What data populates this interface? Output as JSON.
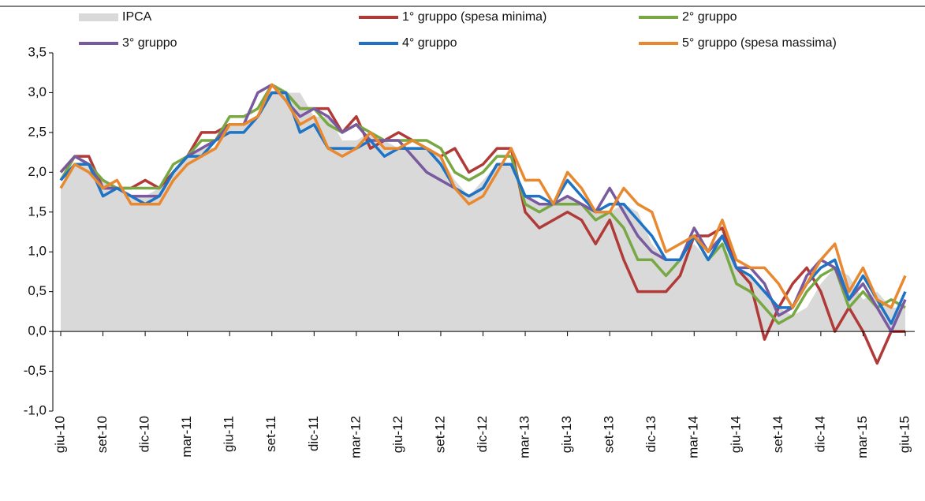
{
  "chart_data": {
    "type": "line",
    "categories": [
      "giu-10",
      null,
      null,
      "set-10",
      null,
      null,
      "dic-10",
      null,
      null,
      "mar-11",
      null,
      null,
      "giu-11",
      null,
      null,
      "set-11",
      null,
      null,
      "dic-11",
      null,
      null,
      "mar-12",
      null,
      null,
      "giu-12",
      null,
      null,
      "set-12",
      null,
      null,
      "dic-12",
      null,
      null,
      "mar-13",
      null,
      null,
      "giu-13",
      null,
      null,
      "set-13",
      null,
      null,
      "dic-13",
      null,
      null,
      "mar-14",
      null,
      null,
      "giu-14",
      null,
      null,
      "set-14",
      null,
      null,
      "dic-14",
      null,
      null,
      "mar-15",
      null,
      null,
      "giu-15"
    ],
    "series": [
      {
        "name": "IPCA",
        "type": "area",
        "color": "#d9d9d9",
        "values": [
          1.8,
          2.1,
          2.1,
          1.9,
          1.8,
          1.7,
          1.7,
          1.8,
          2.0,
          2.2,
          2.3,
          2.3,
          2.6,
          2.6,
          2.7,
          3.0,
          3.0,
          3.0,
          2.7,
          2.7,
          2.4,
          2.4,
          2.5,
          2.4,
          2.3,
          2.3,
          2.3,
          2.2,
          1.9,
          1.7,
          1.9,
          2.1,
          2.1,
          1.7,
          1.6,
          1.6,
          1.7,
          1.6,
          1.5,
          1.5,
          1.6,
          1.5,
          1.1,
          0.9,
          0.9,
          1.1,
          0.9,
          1.1,
          0.8,
          0.7,
          0.5,
          0.3,
          0.2,
          0.3,
          0.6,
          0.8,
          0.7,
          0.4,
          0.5,
          0.3,
          0.3
        ]
      },
      {
        "name": "1° gruppo (spesa minima)",
        "color": "#b03a38",
        "values": [
          2.0,
          2.2,
          2.2,
          1.8,
          1.8,
          1.8,
          1.9,
          1.8,
          2.0,
          2.2,
          2.5,
          2.5,
          2.6,
          2.6,
          2.7,
          3.0,
          3.0,
          2.8,
          2.8,
          2.8,
          2.5,
          2.7,
          2.3,
          2.4,
          2.5,
          2.4,
          2.3,
          2.2,
          2.3,
          2.0,
          2.1,
          2.3,
          2.3,
          1.5,
          1.3,
          1.4,
          1.5,
          1.4,
          1.1,
          1.4,
          0.9,
          0.5,
          0.5,
          0.5,
          0.7,
          1.2,
          1.2,
          1.3,
          0.8,
          0.6,
          -0.1,
          0.3,
          0.6,
          0.8,
          0.5,
          0.0,
          0.3,
          0.0,
          -0.4,
          0.0,
          0.0
        ]
      },
      {
        "name": "2° gruppo",
        "color": "#77a844",
        "values": [
          1.9,
          2.2,
          2.1,
          1.9,
          1.8,
          1.8,
          1.8,
          1.8,
          2.1,
          2.2,
          2.4,
          2.4,
          2.7,
          2.7,
          2.8,
          3.1,
          3.0,
          2.8,
          2.8,
          2.6,
          2.5,
          2.6,
          2.5,
          2.4,
          2.4,
          2.4,
          2.4,
          2.3,
          2.0,
          1.9,
          2.0,
          2.2,
          2.2,
          1.6,
          1.5,
          1.6,
          1.6,
          1.6,
          1.4,
          1.5,
          1.3,
          0.9,
          0.9,
          0.7,
          0.9,
          1.2,
          0.9,
          1.1,
          0.6,
          0.5,
          0.3,
          0.1,
          0.2,
          0.5,
          0.7,
          0.8,
          0.3,
          0.5,
          0.3,
          0.4,
          0.3
        ]
      },
      {
        "name": "3° gruppo",
        "color": "#7a5a9e",
        "values": [
          2.0,
          2.2,
          2.1,
          1.8,
          1.8,
          1.7,
          1.7,
          1.7,
          2.0,
          2.2,
          2.3,
          2.4,
          2.6,
          2.6,
          3.0,
          3.1,
          2.9,
          2.7,
          2.8,
          2.7,
          2.5,
          2.6,
          2.4,
          2.4,
          2.4,
          2.2,
          2.0,
          1.9,
          1.8,
          1.7,
          1.8,
          2.1,
          2.1,
          1.7,
          1.6,
          1.6,
          1.7,
          1.6,
          1.5,
          1.8,
          1.5,
          1.2,
          1.0,
          0.9,
          0.9,
          1.3,
          1.0,
          1.2,
          0.8,
          0.8,
          0.6,
          0.2,
          0.3,
          0.7,
          0.9,
          0.8,
          0.4,
          0.6,
          0.3,
          0.0,
          0.4
        ]
      },
      {
        "name": "4° gruppo",
        "color": "#1f73c4",
        "values": [
          1.9,
          2.1,
          2.1,
          1.7,
          1.8,
          1.7,
          1.6,
          1.7,
          2.0,
          2.2,
          2.2,
          2.4,
          2.5,
          2.5,
          2.7,
          3.0,
          3.0,
          2.5,
          2.6,
          2.3,
          2.3,
          2.3,
          2.4,
          2.2,
          2.3,
          2.3,
          2.3,
          2.1,
          1.8,
          1.7,
          1.8,
          2.1,
          2.1,
          1.7,
          1.7,
          1.6,
          1.9,
          1.7,
          1.5,
          1.6,
          1.6,
          1.4,
          1.2,
          0.9,
          0.9,
          1.2,
          0.9,
          1.2,
          0.8,
          0.7,
          0.5,
          0.3,
          0.3,
          0.6,
          0.8,
          0.9,
          0.4,
          0.7,
          0.4,
          0.1,
          0.5
        ]
      },
      {
        "name": "5° gruppo (spesa massima)",
        "color": "#e8892f",
        "values": [
          1.8,
          2.1,
          2.0,
          1.8,
          1.9,
          1.6,
          1.6,
          1.6,
          1.9,
          2.1,
          2.2,
          2.3,
          2.6,
          2.6,
          2.7,
          3.1,
          2.9,
          2.6,
          2.7,
          2.3,
          2.2,
          2.3,
          2.5,
          2.3,
          2.3,
          2.4,
          2.3,
          2.2,
          1.8,
          1.6,
          1.7,
          2.0,
          2.3,
          1.9,
          1.9,
          1.6,
          2.0,
          1.8,
          1.5,
          1.5,
          1.8,
          1.6,
          1.5,
          1.0,
          1.1,
          1.2,
          1.0,
          1.4,
          0.9,
          0.8,
          0.8,
          0.6,
          0.3,
          0.6,
          0.9,
          1.1,
          0.5,
          0.8,
          0.4,
          0.3,
          0.7
        ]
      }
    ],
    "ylim": [
      -1.0,
      3.5
    ],
    "yticks": [
      {
        "value": -1.0,
        "label": "-1,0"
      },
      {
        "value": -0.5,
        "label": "-0,5"
      },
      {
        "value": 0.0,
        "label": "0,0"
      },
      {
        "value": 0.5,
        "label": "0,5"
      },
      {
        "value": 1.0,
        "label": "1,0"
      },
      {
        "value": 1.5,
        "label": "1,5"
      },
      {
        "value": 2.0,
        "label": "2,0"
      },
      {
        "value": 2.5,
        "label": "2,5"
      },
      {
        "value": 3.0,
        "label": "3,0"
      },
      {
        "value": 3.5,
        "label": "3,5"
      }
    ],
    "grid": false
  }
}
